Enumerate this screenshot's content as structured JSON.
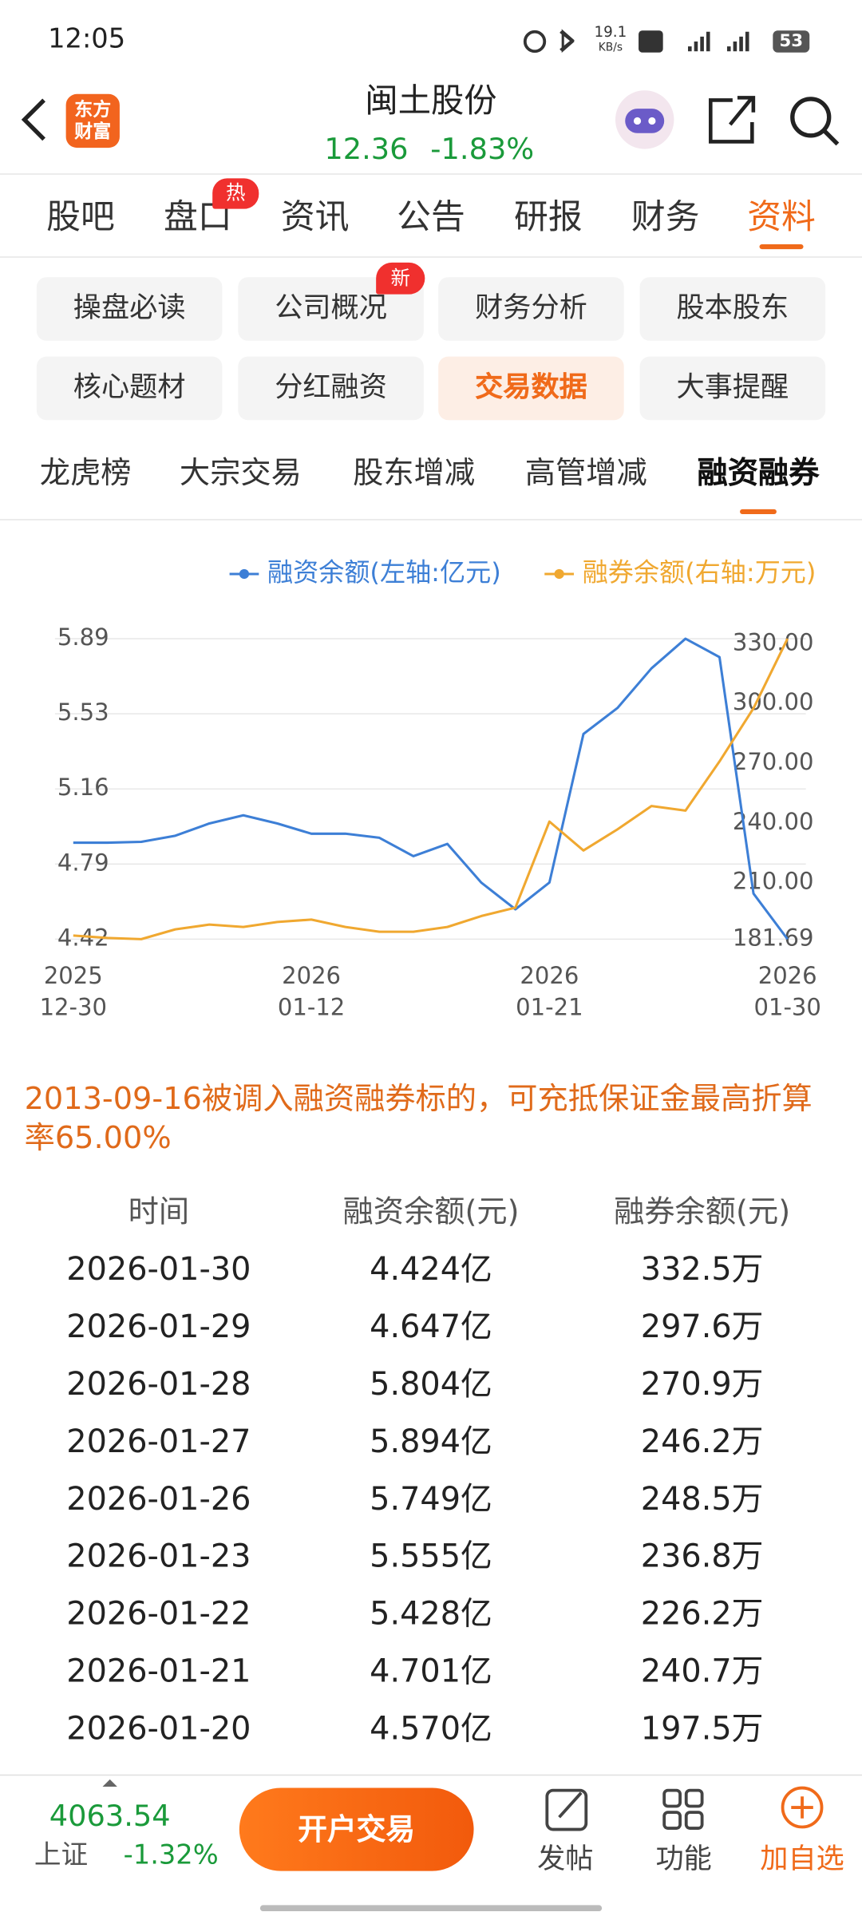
{
  "status_bar": {
    "time": "12:05",
    "net_speed": [
      "19.1",
      "KB/s"
    ],
    "battery": "53"
  },
  "header": {
    "logo": [
      "东方",
      "财富"
    ],
    "title": "闽土股份",
    "price": "12.36",
    "change": "-1.83%"
  },
  "tabs": [
    {
      "label": "股吧"
    },
    {
      "label": "盘口",
      "badge": "热"
    },
    {
      "label": "资讯"
    },
    {
      "label": "公告"
    },
    {
      "label": "研报"
    },
    {
      "label": "财务"
    },
    {
      "label": "资料",
      "active": true
    }
  ],
  "menu": [
    {
      "label": "操盘必读"
    },
    {
      "label": "公司概况",
      "badge": "新"
    },
    {
      "label": "财务分析"
    },
    {
      "label": "股本股东"
    },
    {
      "label": "核心题材"
    },
    {
      "label": "分红融资"
    },
    {
      "label": "交易数据",
      "active": true
    },
    {
      "label": "大事提醒"
    }
  ],
  "subtabs": [
    {
      "label": "龙虎榜"
    },
    {
      "label": "大宗交易"
    },
    {
      "label": "股东增减"
    },
    {
      "label": "高管增减"
    },
    {
      "label": "融资融券",
      "active": true
    }
  ],
  "chart_data": {
    "type": "line",
    "categories": [
      [
        "2025",
        "12-30"
      ],
      null,
      null,
      null,
      null,
      null,
      null,
      [
        "2026",
        "01-12"
      ],
      null,
      null,
      null,
      null,
      null,
      null,
      [
        "2026",
        "01-21"
      ],
      null,
      null,
      null,
      null,
      null,
      null,
      [
        "2026",
        "01-30"
      ]
    ],
    "series": [
      {
        "name": "融资余额(左轴:亿元)",
        "color": "#3d7fd6",
        "values": [
          4.896,
          4.896,
          4.9,
          4.93,
          4.99,
          5.03,
          4.99,
          4.94,
          4.94,
          4.92,
          4.83,
          4.89,
          4.7,
          4.57,
          4.701,
          5.428,
          5.555,
          5.749,
          5.894,
          5.804,
          4.647,
          4.424
        ]
      },
      {
        "name": "融券余额(右轴:万元)",
        "color": "#f0a830",
        "axis": "y2",
        "values": [
          183.5,
          182.3,
          181.69,
          186.6,
          189.0,
          187.8,
          190.3,
          191.5,
          187.8,
          185.4,
          185.4,
          187.8,
          193.3,
          197.5,
          240.7,
          226.2,
          236.8,
          248.5,
          246.2,
          270.9,
          297.6,
          332.5
        ]
      }
    ],
    "ylim": [
      4.424,
      5.894
    ],
    "yticks": [
      {
        "value": 4.424,
        "label": "4.42"
      },
      {
        "value": 4.7915,
        "label": "4.79"
      },
      {
        "value": 5.159,
        "label": "5.16"
      },
      {
        "value": 5.5265,
        "label": "5.53"
      },
      {
        "value": 5.894,
        "label": "5.89"
      }
    ],
    "y2lim": [
      181.69,
      332.5
    ],
    "y2ticks": [
      {
        "value": 181.69,
        "label": "181.69"
      },
      {
        "value": 210,
        "label": "210.00"
      },
      {
        "value": 240,
        "label": "240.00"
      },
      {
        "value": 270,
        "label": "270.00"
      },
      {
        "value": 300,
        "label": "300.00"
      },
      {
        "value": 330,
        "label": "330.00"
      }
    ],
    "grid": true,
    "legend": "top"
  },
  "note": "2013-09-16被调入融资融券标的，可充抵保证金最高折算率65.00%",
  "table": {
    "headers": [
      "时间",
      "融资余额(元)",
      "融券余额(元)"
    ],
    "rows": [
      [
        "2026-01-30",
        "4.424亿",
        "332.5万"
      ],
      [
        "2026-01-29",
        "4.647亿",
        "297.6万"
      ],
      [
        "2026-01-28",
        "5.804亿",
        "270.9万"
      ],
      [
        "2026-01-27",
        "5.894亿",
        "246.2万"
      ],
      [
        "2026-01-26",
        "5.749亿",
        "248.5万"
      ],
      [
        "2026-01-23",
        "5.555亿",
        "236.8万"
      ],
      [
        "2026-01-22",
        "5.428亿",
        "226.2万"
      ],
      [
        "2026-01-21",
        "4.701亿",
        "240.7万"
      ],
      [
        "2026-01-20",
        "4.570亿",
        "197.5万"
      ]
    ]
  },
  "bottom_bar": {
    "index_value": "4063.54",
    "index_name": "上证",
    "index_change": "-1.32%",
    "button": "开户交易",
    "actions": [
      "发帖",
      "功能",
      "加自选"
    ]
  }
}
